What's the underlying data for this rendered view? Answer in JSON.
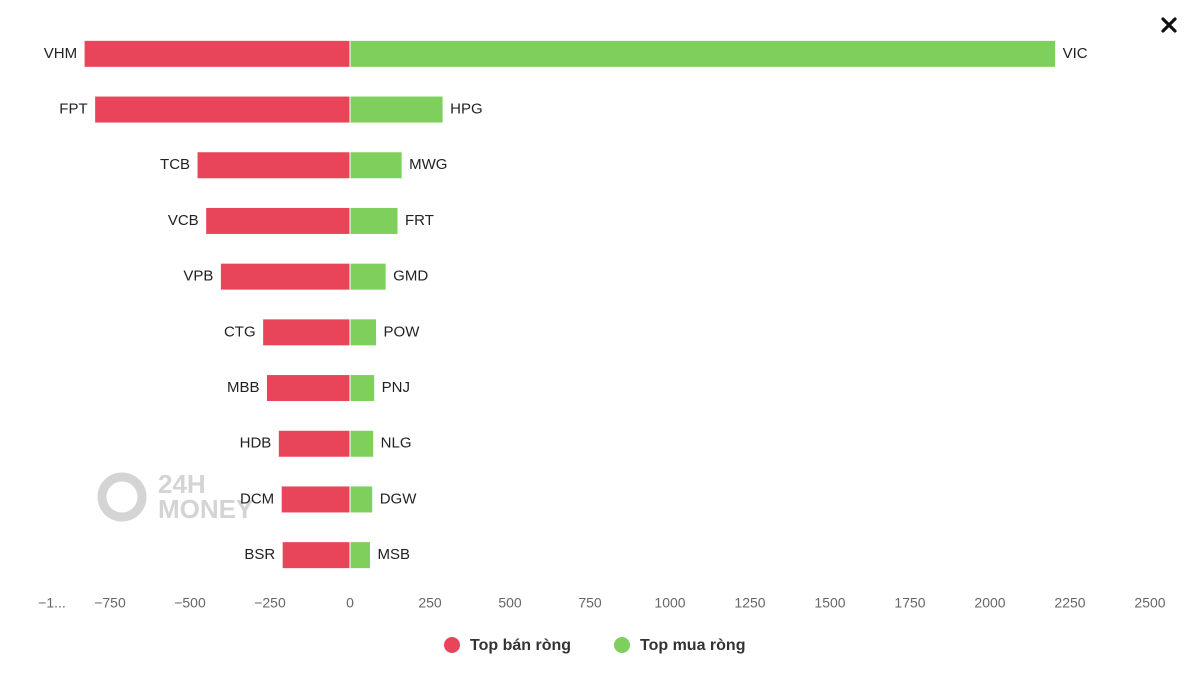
{
  "chart_data": {
    "type": "bar",
    "orientation": "horizontal",
    "series": [
      {
        "name": "Top bán ròng",
        "color": "#e9455a",
        "labels": [
          "VHM",
          "FPT",
          "TCB",
          "VCB",
          "VPB",
          "CTG",
          "MBB",
          "HDB",
          "DCM",
          "BSR"
        ],
        "values": [
          -831,
          -798,
          -478,
          -451,
          -405,
          -273,
          -261,
          -224,
          -215,
          -212
        ]
      },
      {
        "name": "Top mua ròng",
        "color": "#7ecf5b",
        "labels": [
          "VIC",
          "HPG",
          "MWG",
          "FRT",
          "GMD",
          "POW",
          "PNJ",
          "NLG",
          "DGW",
          "MSB"
        ],
        "values": [
          2205,
          291,
          163,
          150,
          113,
          83,
          77,
          74,
          71,
          64
        ]
      }
    ],
    "xlim": [
      -1000,
      2500
    ],
    "xticks": [
      {
        "value": -1000,
        "label": "−1..."
      },
      {
        "value": -750,
        "label": "−750"
      },
      {
        "value": -500,
        "label": "−500"
      },
      {
        "value": -250,
        "label": "−250"
      },
      0,
      250,
      500,
      750,
      1000,
      1250,
      1500,
      1750,
      2000,
      2250,
      2500
    ],
    "watermark": [
      "24H",
      "MONEY"
    ]
  }
}
